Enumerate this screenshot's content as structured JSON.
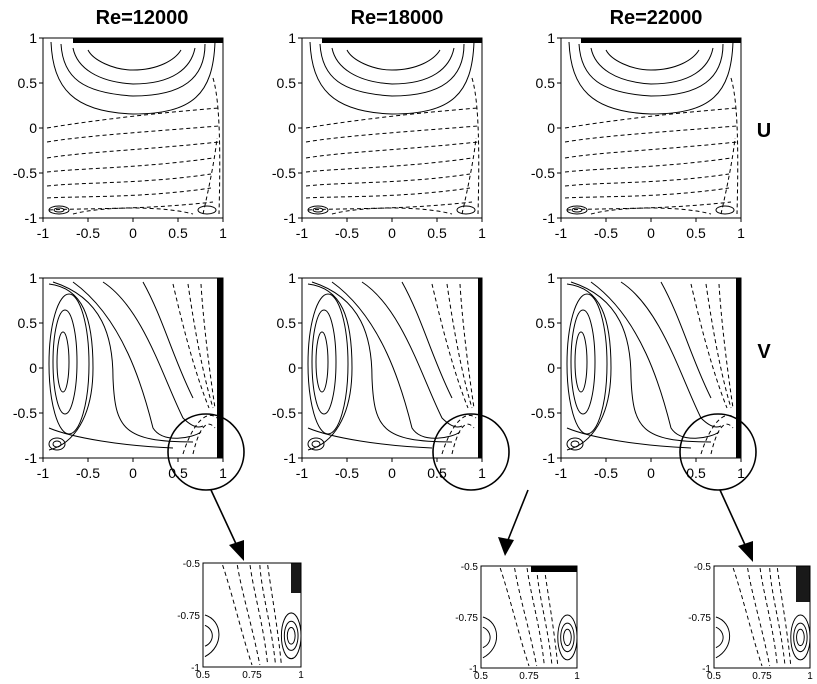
{
  "titles": [
    "Re=12000",
    "Re=18000",
    "Re=22000"
  ],
  "row_labels": {
    "u": "U",
    "v": "V"
  },
  "main_ticks": [
    "-1",
    "-0.5",
    "0",
    "0.5",
    "1"
  ],
  "main_ticks_values": [
    -1,
    -0.5,
    0,
    0.5,
    1
  ],
  "zoom_xticks": [
    "0.5",
    "0.75",
    "1"
  ],
  "zoom_yticks": [
    "-0.5",
    "-0.75",
    "-1"
  ]
}
